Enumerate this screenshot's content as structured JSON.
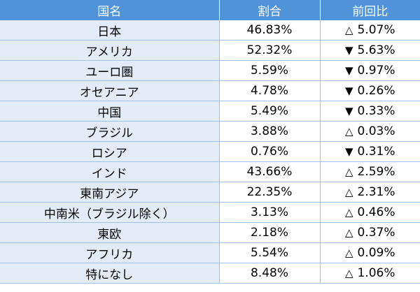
{
  "table": {
    "headers": [
      "国名",
      "割合",
      "前回比"
    ],
    "rows": [
      {
        "name": "日本",
        "share": "46.83%",
        "symbol": "△",
        "change": "5.07%"
      },
      {
        "name": "アメリカ",
        "share": "52.32%",
        "symbol": "▼",
        "change": "5.63%"
      },
      {
        "name": "ユーロ圏",
        "share": "5.59%",
        "symbol": "▼",
        "change": "0.97%"
      },
      {
        "name": "オセアニア",
        "share": "4.78%",
        "symbol": "▼",
        "change": "0.26%"
      },
      {
        "name": "中国",
        "share": "5.49%",
        "symbol": "▼",
        "change": "0.33%"
      },
      {
        "name": "ブラジル",
        "share": "3.88%",
        "symbol": "△",
        "change": "0.03%"
      },
      {
        "name": "ロシア",
        "share": "0.76%",
        "symbol": "▼",
        "change": "0.31%"
      },
      {
        "name": "インド",
        "share": "43.66%",
        "symbol": "△",
        "change": "2.59%"
      },
      {
        "name": "東南アジア",
        "share": "22.35%",
        "symbol": "△",
        "change": "2.31%"
      },
      {
        "name": "中南米（ブラジル除く）",
        "share": "3.13%",
        "symbol": "△",
        "change": "0.46%"
      },
      {
        "name": "東欧",
        "share": "2.18%",
        "symbol": "△",
        "change": "0.37%"
      },
      {
        "name": "アフリカ",
        "share": "5.54%",
        "symbol": "△",
        "change": "0.09%"
      },
      {
        "name": "特になし",
        "share": "8.48%",
        "symbol": "△",
        "change": "1.06%"
      }
    ]
  },
  "colors": {
    "header_bg": "#4f93d9",
    "header_text": "#ffffff",
    "name_col_bg": "#e3ebf7",
    "grid_line": "#9ec2e8"
  }
}
